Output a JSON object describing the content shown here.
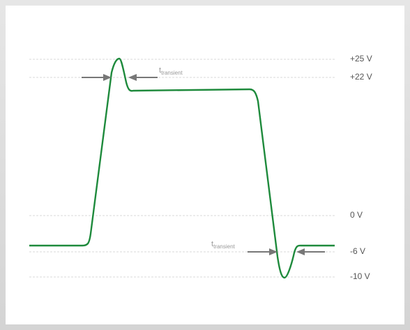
{
  "levels": [
    {
      "label": "+25 V"
    },
    {
      "label": "+22 V"
    },
    {
      "label": "0 V"
    },
    {
      "label": "-6 V"
    },
    {
      "label": "-10 V"
    }
  ],
  "annotations": [
    {
      "main": "t",
      "sub": "transient"
    },
    {
      "main": "t",
      "sub": "transient"
    }
  ]
}
